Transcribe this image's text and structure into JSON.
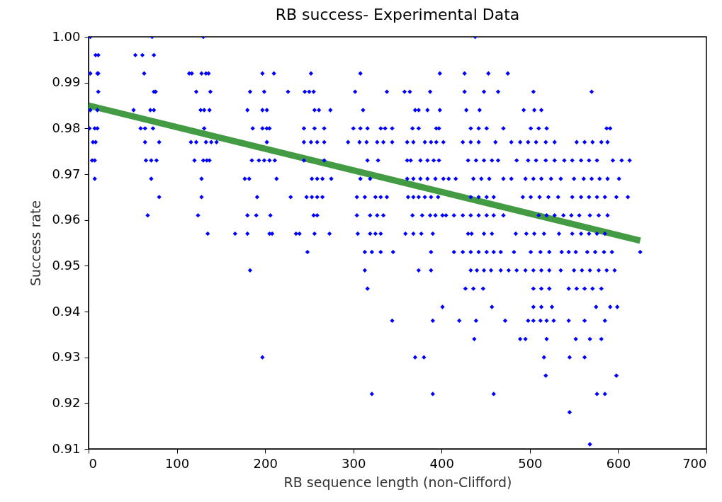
{
  "chart_data": {
    "type": "scatter",
    "title": "RB success- Experimental Data",
    "xlabel": "RB sequence length (non-Clifford)",
    "ylabel": "Success rate",
    "xlim": [
      0,
      700
    ],
    "xticks": [
      0,
      100,
      200,
      300,
      400,
      500,
      600,
      700
    ],
    "ylim": [
      0.91,
      1.0
    ],
    "yticks": [
      0.91,
      0.92,
      0.93,
      0.94,
      0.95,
      0.96,
      0.97,
      0.98,
      0.99,
      {
        "value": 1.0,
        "label": "1.00"
      }
    ],
    "grid": false,
    "series": [
      {
        "color": "#0000ff",
        "marker": "diamond",
        "x": [
          2,
          72,
          130,
          438,
          8,
          11,
          53,
          61,
          74,
          2,
          10,
          11,
          63,
          114,
          117,
          128,
          133,
          136,
          197,
          210,
          252,
          308,
          398,
          426,
          453,
          475,
          11,
          74,
          76,
          122,
          138,
          183,
          199,
          226,
          245,
          250,
          255,
          302,
          338,
          358,
          364,
          387,
          426,
          448,
          464,
          504,
          570,
          2,
          10,
          51,
          70,
          74,
          127,
          131,
          137,
          180,
          197,
          202,
          256,
          261,
          274,
          311,
          370,
          374,
          384,
          398,
          428,
          443,
          493,
          505,
          513,
          1,
          7,
          10,
          59,
          64,
          73,
          131,
          186,
          197,
          202,
          205,
          244,
          256,
          267,
          300,
          308,
          316,
          331,
          336,
          344,
          367,
          374,
          394,
          397,
          433,
          442,
          451,
          470,
          501,
          510,
          519,
          587,
          591,
          5,
          8,
          64,
          80,
          116,
          122,
          133,
          139,
          145,
          202,
          244,
          252,
          259,
          267,
          294,
          307,
          315,
          327,
          334,
          344,
          361,
          368,
          381,
          388,
          394,
          402,
          424,
          433,
          442,
          461,
          479,
          489,
          498,
          507,
          518,
          528,
          553,
          562,
          571,
          581,
          588,
          4,
          7,
          65,
          71,
          77,
          120,
          130,
          134,
          137,
          185,
          193,
          199,
          205,
          211,
          244,
          267,
          316,
          328,
          361,
          365,
          376,
          384,
          391,
          397,
          430,
          439,
          448,
          457,
          464,
          485,
          498,
          507,
          518,
          528,
          539,
          548,
          558,
          567,
          576,
          594,
          604,
          613,
          7,
          71,
          128,
          177,
          182,
          213,
          253,
          259,
          265,
          275,
          308,
          319,
          361,
          368,
          376,
          384,
          393,
          402,
          408,
          416,
          436,
          445,
          454,
          470,
          479,
          495,
          504,
          513,
          524,
          535,
          550,
          561,
          570,
          579,
          588,
          601,
          80,
          128,
          191,
          229,
          247,
          253,
          259,
          265,
          304,
          313,
          325,
          331,
          338,
          362,
          368,
          374,
          381,
          388,
          396,
          433,
          442,
          451,
          459,
          492,
          501,
          511,
          521,
          532,
          548,
          558,
          567,
          576,
          585,
          598,
          611,
          67,
          124,
          180,
          190,
          206,
          255,
          259,
          304,
          319,
          327,
          334,
          367,
          378,
          387,
          393,
          401,
          405,
          414,
          424,
          433,
          442,
          451,
          459,
          470,
          510,
          519,
          528,
          538,
          547,
          556,
          568,
          578,
          588,
          135,
          166,
          180,
          205,
          208,
          235,
          239,
          256,
          273,
          305,
          319,
          325,
          331,
          359,
          368,
          377,
          390,
          430,
          434,
          448,
          457,
          484,
          496,
          505,
          516,
          533,
          548,
          558,
          567,
          576,
          585,
          248,
          313,
          321,
          331,
          345,
          388,
          414,
          424,
          433,
          442,
          451,
          459,
          467,
          482,
          501,
          512,
          522,
          536,
          544,
          552,
          565,
          574,
          584,
          593,
          625,
          183,
          313,
          374,
          388,
          433,
          440,
          448,
          456,
          467,
          476,
          485,
          495,
          504,
          513,
          522,
          535,
          550,
          559,
          568,
          578,
          587,
          596,
          316,
          427,
          436,
          447,
          504,
          513,
          522,
          544,
          553,
          562,
          571,
          581,
          401,
          457,
          504,
          513,
          525,
          575,
          591,
          599,
          344,
          390,
          420,
          439,
          472,
          498,
          504,
          512,
          519,
          527,
          544,
          562,
          585,
          437,
          489,
          495,
          519,
          552,
          568,
          581,
          197,
          370,
          380,
          516,
          545,
          562,
          518,
          598,
          321,
          390,
          459,
          576,
          585,
          545,
          568
        ],
        "values": [
          1.0,
          1.0,
          1.0,
          1.0,
          0.996,
          0.996,
          0.996,
          0.996,
          0.996,
          0.992,
          0.992,
          0.992,
          0.992,
          0.992,
          0.992,
          0.992,
          0.992,
          0.992,
          0.992,
          0.992,
          0.992,
          0.992,
          0.992,
          0.992,
          0.992,
          0.992,
          0.988,
          0.988,
          0.988,
          0.988,
          0.988,
          0.988,
          0.988,
          0.988,
          0.988,
          0.988,
          0.988,
          0.988,
          0.988,
          0.988,
          0.988,
          0.988,
          0.988,
          0.988,
          0.988,
          0.988,
          0.988,
          0.984,
          0.984,
          0.984,
          0.984,
          0.984,
          0.984,
          0.984,
          0.984,
          0.984,
          0.984,
          0.984,
          0.984,
          0.984,
          0.984,
          0.984,
          0.984,
          0.984,
          0.984,
          0.984,
          0.984,
          0.984,
          0.984,
          0.984,
          0.984,
          0.98,
          0.98,
          0.98,
          0.98,
          0.98,
          0.98,
          0.98,
          0.98,
          0.98,
          0.98,
          0.98,
          0.98,
          0.98,
          0.98,
          0.98,
          0.98,
          0.98,
          0.98,
          0.98,
          0.98,
          0.98,
          0.98,
          0.98,
          0.98,
          0.98,
          0.98,
          0.98,
          0.98,
          0.98,
          0.98,
          0.98,
          0.98,
          0.98,
          0.977,
          0.977,
          0.977,
          0.977,
          0.977,
          0.977,
          0.977,
          0.977,
          0.977,
          0.977,
          0.977,
          0.977,
          0.977,
          0.977,
          0.977,
          0.977,
          0.977,
          0.977,
          0.977,
          0.977,
          0.977,
          0.977,
          0.977,
          0.977,
          0.977,
          0.977,
          0.977,
          0.977,
          0.977,
          0.977,
          0.977,
          0.977,
          0.977,
          0.977,
          0.977,
          0.977,
          0.977,
          0.977,
          0.977,
          0.977,
          0.977,
          0.973,
          0.973,
          0.973,
          0.973,
          0.973,
          0.973,
          0.973,
          0.973,
          0.973,
          0.973,
          0.973,
          0.973,
          0.973,
          0.973,
          0.973,
          0.973,
          0.973,
          0.973,
          0.973,
          0.973,
          0.973,
          0.973,
          0.973,
          0.973,
          0.973,
          0.973,
          0.973,
          0.973,
          0.973,
          0.973,
          0.973,
          0.973,
          0.973,
          0.973,
          0.973,
          0.973,
          0.973,
          0.973,
          0.973,
          0.973,
          0.973,
          0.973,
          0.969,
          0.969,
          0.969,
          0.969,
          0.969,
          0.969,
          0.969,
          0.969,
          0.969,
          0.969,
          0.969,
          0.969,
          0.969,
          0.969,
          0.969,
          0.969,
          0.969,
          0.969,
          0.969,
          0.969,
          0.969,
          0.969,
          0.969,
          0.969,
          0.969,
          0.969,
          0.969,
          0.969,
          0.969,
          0.969,
          0.969,
          0.969,
          0.969,
          0.969,
          0.969,
          0.969,
          0.965,
          0.965,
          0.965,
          0.965,
          0.965,
          0.965,
          0.965,
          0.965,
          0.965,
          0.965,
          0.965,
          0.965,
          0.965,
          0.965,
          0.965,
          0.965,
          0.965,
          0.965,
          0.965,
          0.965,
          0.965,
          0.965,
          0.965,
          0.965,
          0.965,
          0.965,
          0.965,
          0.965,
          0.965,
          0.965,
          0.965,
          0.965,
          0.965,
          0.965,
          0.965,
          0.961,
          0.961,
          0.961,
          0.961,
          0.961,
          0.961,
          0.961,
          0.961,
          0.961,
          0.961,
          0.961,
          0.961,
          0.961,
          0.961,
          0.961,
          0.961,
          0.961,
          0.961,
          0.961,
          0.961,
          0.961,
          0.961,
          0.961,
          0.961,
          0.961,
          0.961,
          0.961,
          0.961,
          0.961,
          0.961,
          0.961,
          0.961,
          0.961,
          0.957,
          0.957,
          0.957,
          0.957,
          0.957,
          0.957,
          0.957,
          0.957,
          0.957,
          0.957,
          0.957,
          0.957,
          0.957,
          0.957,
          0.957,
          0.957,
          0.957,
          0.957,
          0.957,
          0.957,
          0.957,
          0.957,
          0.957,
          0.957,
          0.957,
          0.957,
          0.957,
          0.957,
          0.957,
          0.957,
          0.957,
          0.953,
          0.953,
          0.953,
          0.953,
          0.953,
          0.953,
          0.953,
          0.953,
          0.953,
          0.953,
          0.953,
          0.953,
          0.953,
          0.953,
          0.953,
          0.953,
          0.953,
          0.953,
          0.953,
          0.953,
          0.953,
          0.953,
          0.953,
          0.953,
          0.953,
          0.949,
          0.949,
          0.949,
          0.949,
          0.949,
          0.949,
          0.949,
          0.949,
          0.949,
          0.949,
          0.949,
          0.949,
          0.949,
          0.949,
          0.949,
          0.949,
          0.949,
          0.949,
          0.949,
          0.949,
          0.949,
          0.949,
          0.945,
          0.945,
          0.945,
          0.945,
          0.945,
          0.945,
          0.945,
          0.945,
          0.945,
          0.945,
          0.945,
          0.945,
          0.941,
          0.941,
          0.941,
          0.941,
          0.941,
          0.941,
          0.941,
          0.941,
          0.938,
          0.938,
          0.938,
          0.938,
          0.938,
          0.938,
          0.938,
          0.938,
          0.938,
          0.938,
          0.938,
          0.938,
          0.938,
          0.934,
          0.934,
          0.934,
          0.934,
          0.934,
          0.934,
          0.934,
          0.93,
          0.93,
          0.93,
          0.93,
          0.93,
          0.93,
          0.926,
          0.926,
          0.922,
          0.922,
          0.922,
          0.922,
          0.922,
          0.918,
          0.911
        ]
      },
      {
        "type": "line",
        "color": "#228b22",
        "marker": "none",
        "line_style": "solid",
        "x": [
          0,
          625
        ],
        "values": [
          0.985,
          0.9555
        ]
      }
    ]
  }
}
